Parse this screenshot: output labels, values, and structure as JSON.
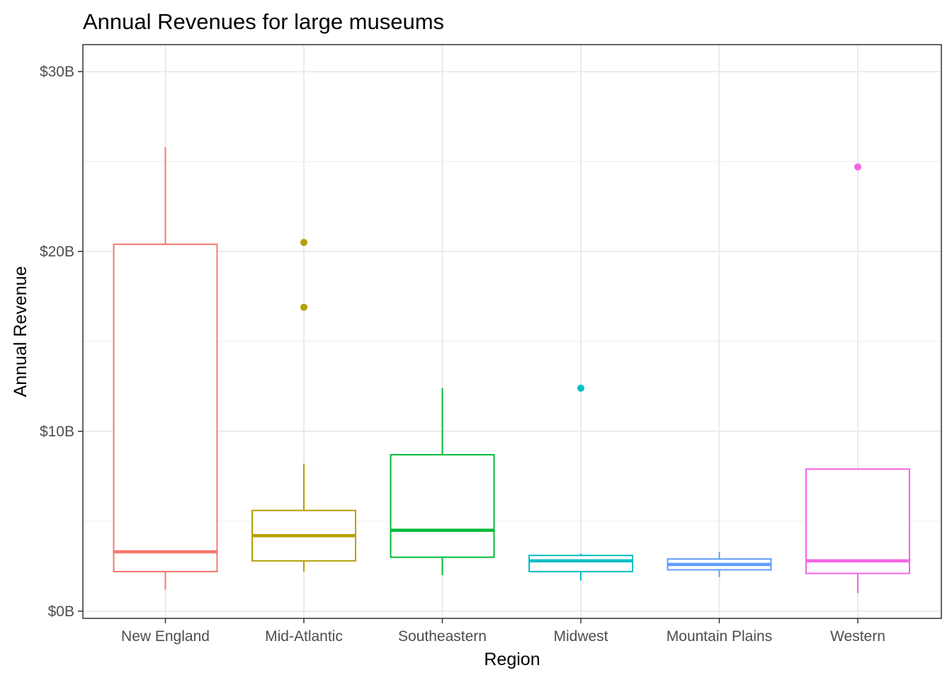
{
  "chart_data": {
    "type": "boxplot",
    "title": "Annual Revenues for large museums",
    "xlabel": "Region",
    "ylabel": "Annual Revenue",
    "ylim": [
      -0.4,
      31.5
    ],
    "y_ticks": [
      0,
      10,
      20,
      30
    ],
    "y_tick_labels": [
      "$0B",
      "$10B",
      "$20B",
      "$30B"
    ],
    "grid": true,
    "legend": "none",
    "categories": [
      "New England",
      "Mid-Atlantic",
      "Southeastern",
      "Midwest",
      "Mountain Plains",
      "Western"
    ],
    "series": [
      {
        "category": "New England",
        "color": "#F8766D",
        "whisker_low": 1.2,
        "q1": 2.2,
        "median": 3.3,
        "q3": 20.4,
        "whisker_high": 25.8,
        "outliers": []
      },
      {
        "category": "Mid-Atlantic",
        "color": "#B79F00",
        "whisker_low": 2.2,
        "q1": 2.8,
        "median": 4.2,
        "q3": 5.6,
        "whisker_high": 8.2,
        "outliers": [
          20.5,
          16.9
        ]
      },
      {
        "category": "Southeastern",
        "color": "#00BA38",
        "whisker_low": 2.0,
        "q1": 3.0,
        "median": 4.5,
        "q3": 8.7,
        "whisker_high": 12.4,
        "outliers": []
      },
      {
        "category": "Midwest",
        "color": "#00BFC4",
        "whisker_low": 1.7,
        "q1": 2.2,
        "median": 2.8,
        "q3": 3.1,
        "whisker_high": 3.2,
        "outliers": [
          12.4
        ]
      },
      {
        "category": "Mountain Plains",
        "color": "#619CFF",
        "whisker_low": 1.9,
        "q1": 2.3,
        "median": 2.6,
        "q3": 2.9,
        "whisker_high": 3.3,
        "outliers": []
      },
      {
        "category": "Western",
        "color": "#F564E3",
        "whisker_low": 1.0,
        "q1": 2.1,
        "median": 2.8,
        "q3": 7.9,
        "whisker_high": 7.9,
        "outliers": [
          24.7
        ]
      }
    ]
  }
}
